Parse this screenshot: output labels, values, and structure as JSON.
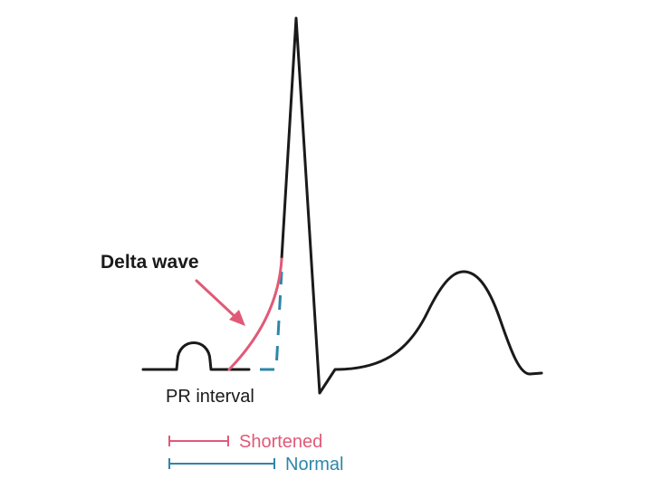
{
  "labels": {
    "delta_wave": "Delta wave",
    "pr_interval": "PR interval"
  },
  "legend": [
    {
      "key": "shortened",
      "label": "Shortened",
      "color": "#e05a77"
    },
    {
      "key": "normal",
      "label": "Normal",
      "color": "#2e86a8"
    }
  ],
  "colors": {
    "ecg_trace": "#1a1a1a",
    "delta_wave": "#e05a77",
    "normal_dashed": "#2e86a8",
    "arrow": "#e05a77"
  }
}
